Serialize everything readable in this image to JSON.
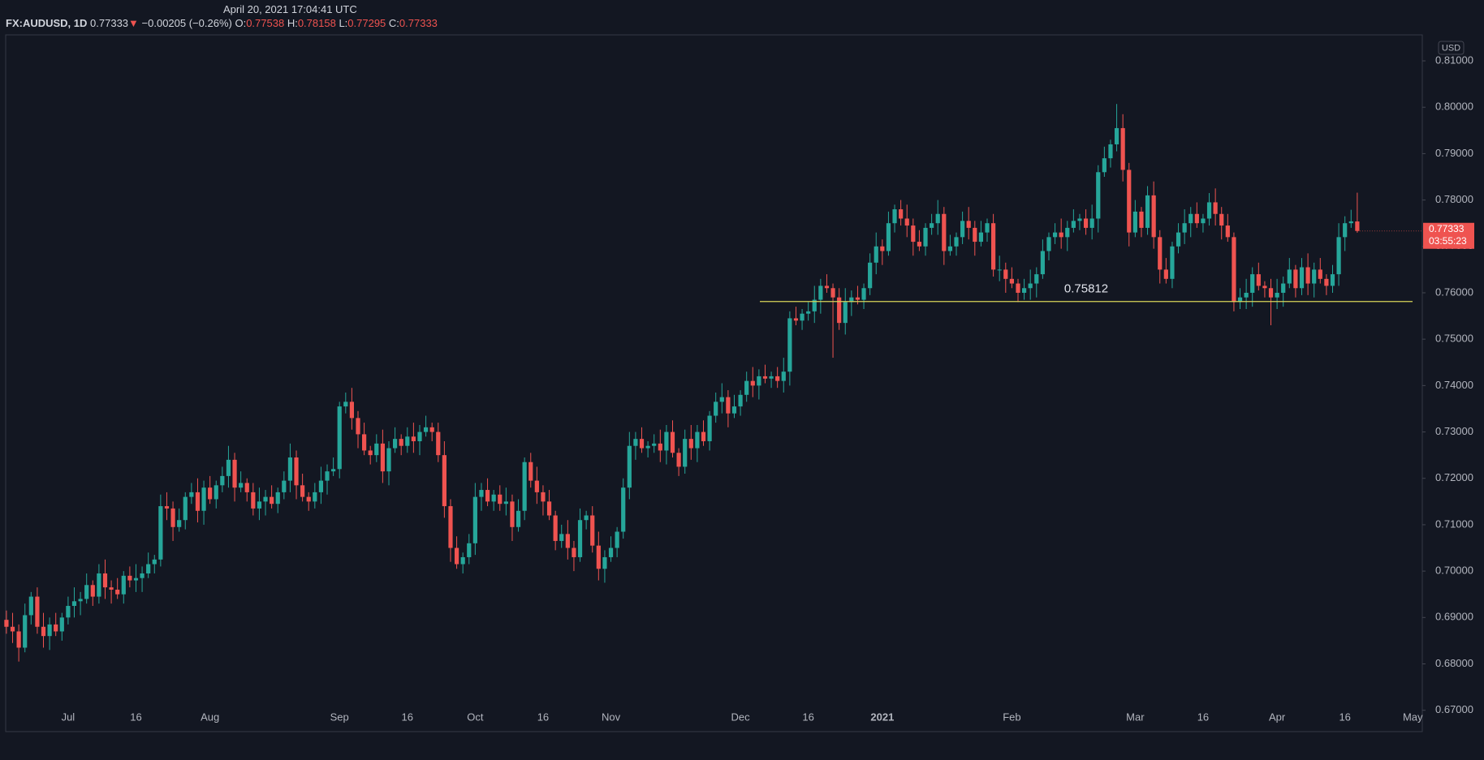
{
  "header": {
    "datetime": "April 20, 2021 17:04:41 UTC",
    "symbol": "FX:AUDUSD, 1D",
    "arrow": "▼",
    "change": "−0.00205 (−0.26%)",
    "o_label": "O:",
    "h_label": "H:",
    "l_label": "L:",
    "c_label": "C:"
  },
  "chart_data": {
    "type": "candlestick",
    "currency": "USD",
    "up_color": "#26a69a",
    "down_color": "#ef5350",
    "grid": false,
    "last_price_timer": "03:55:23",
    "hline": 0.75812,
    "hline_color": "#d8d45a",
    "ylim": [
      0.6654,
      0.8156
    ],
    "yticks": [
      {
        "value": 0.67,
        "label": "0.67000"
      },
      {
        "value": 0.68,
        "label": "0.68000"
      },
      {
        "value": 0.69,
        "label": "0.69000"
      },
      {
        "value": 0.7,
        "label": "0.70000"
      },
      {
        "value": 0.71,
        "label": "0.71000"
      },
      {
        "value": 0.72,
        "label": "0.72000"
      },
      {
        "value": 0.73,
        "label": "0.73000"
      },
      {
        "value": 0.74,
        "label": "0.74000"
      },
      {
        "value": 0.75,
        "label": "0.75000"
      },
      {
        "value": 0.76,
        "label": "0.76000"
      },
      {
        "value": 0.77,
        "label": "0.77000"
      },
      {
        "value": 0.78,
        "label": "0.78000"
      },
      {
        "value": 0.79,
        "label": "0.79000"
      },
      {
        "value": 0.8,
        "label": "0.80000"
      },
      {
        "value": 0.81,
        "label": "0.81000"
      }
    ],
    "categories": [
      null,
      null,
      null,
      null,
      null,
      null,
      null,
      null,
      null,
      null,
      "Jul",
      null,
      null,
      null,
      null,
      null,
      null,
      null,
      null,
      null,
      null,
      "16",
      null,
      null,
      null,
      null,
      null,
      null,
      null,
      null,
      null,
      null,
      null,
      "Aug",
      null,
      null,
      null,
      null,
      null,
      null,
      null,
      null,
      null,
      null,
      null,
      null,
      null,
      null,
      null,
      null,
      null,
      null,
      null,
      null,
      "Sep",
      null,
      null,
      null,
      null,
      null,
      null,
      null,
      null,
      null,
      null,
      "16",
      null,
      null,
      null,
      null,
      null,
      null,
      null,
      null,
      null,
      null,
      "Oct",
      null,
      null,
      null,
      null,
      null,
      null,
      null,
      null,
      null,
      null,
      "16",
      null,
      null,
      null,
      null,
      null,
      null,
      null,
      null,
      null,
      null,
      "Nov",
      null,
      null,
      null,
      null,
      null,
      null,
      null,
      null,
      null,
      null,
      null,
      null,
      null,
      null,
      null,
      null,
      null,
      null,
      null,
      null,
      "Dec",
      null,
      null,
      null,
      null,
      null,
      null,
      null,
      null,
      null,
      null,
      "16",
      null,
      null,
      null,
      null,
      null,
      null,
      null,
      null,
      null,
      null,
      null,
      "2021",
      null,
      null,
      null,
      null,
      null,
      null,
      null,
      null,
      null,
      null,
      null,
      null,
      null,
      null,
      null,
      null,
      null,
      null,
      null,
      null,
      "Feb",
      null,
      null,
      null,
      null,
      null,
      null,
      null,
      null,
      null,
      null,
      null,
      null,
      null,
      null,
      null,
      null,
      null,
      null,
      null,
      "Mar",
      null,
      null,
      null,
      null,
      null,
      null,
      null,
      null,
      null,
      null,
      "16",
      null,
      null,
      null,
      null,
      null,
      null,
      null,
      null,
      null,
      null,
      null,
      "Apr",
      null,
      null,
      null,
      null,
      null,
      null,
      null,
      null,
      null,
      null,
      "16",
      null,
      null,
      null,
      null,
      null,
      null,
      null,
      null,
      null,
      null,
      "May"
    ],
    "open": [
      0.6895,
      0.688,
      0.687,
      0.6835,
      0.6905,
      0.6945,
      0.688,
      0.686,
      0.6885,
      0.687,
      0.69,
      0.6925,
      0.6935,
      0.694,
      0.697,
      0.6945,
      0.6995,
      0.6965,
      0.696,
      0.695,
      0.699,
      0.698,
      0.6985,
      0.6995,
      0.7015,
      0.7025,
      0.714,
      0.7135,
      0.7095,
      0.711,
      0.716,
      0.717,
      0.713,
      0.718,
      0.7155,
      0.7185,
      0.7205,
      0.724,
      0.718,
      0.719,
      0.717,
      0.7135,
      0.715,
      0.716,
      0.7145,
      0.717,
      0.7195,
      0.7245,
      0.7185,
      0.716,
      0.715,
      0.717,
      0.7195,
      0.7215,
      0.722,
      0.7355,
      0.7365,
      0.733,
      0.7295,
      0.726,
      0.725,
      0.7275,
      0.7215,
      0.7265,
      0.7285,
      0.727,
      0.729,
      0.728,
      0.73,
      0.731,
      0.73,
      0.725,
      0.714,
      0.705,
      0.7015,
      0.703,
      0.706,
      0.716,
      0.7175,
      0.715,
      0.7165,
      0.7145,
      0.715,
      0.7095,
      0.713,
      0.7235,
      0.7195,
      0.717,
      0.715,
      0.712,
      0.7065,
      0.708,
      0.705,
      0.703,
      0.711,
      0.712,
      0.7055,
      0.7005,
      0.703,
      0.705,
      0.7085,
      0.718,
      0.727,
      0.7285,
      0.7265,
      0.727,
      0.7275,
      0.726,
      0.73,
      0.7255,
      0.7225,
      0.7285,
      0.7265,
      0.73,
      0.728,
      0.7335,
      0.7365,
      0.7375,
      0.734,
      0.7355,
      0.738,
      0.741,
      0.74,
      0.742,
      0.7415,
      0.742,
      0.741,
      0.743,
      0.7545,
      0.754,
      0.7555,
      0.756,
      0.7585,
      0.7615,
      0.761,
      0.759,
      0.7535,
      0.758,
      0.759,
      0.7585,
      0.761,
      0.7665,
      0.77,
      0.769,
      0.775,
      0.778,
      0.776,
      0.7745,
      0.771,
      0.77,
      0.774,
      0.775,
      0.777,
      0.769,
      0.77,
      0.772,
      0.7755,
      0.774,
      0.771,
      0.773,
      0.775,
      0.765,
      0.765,
      0.763,
      0.762,
      0.76,
      0.761,
      0.762,
      0.764,
      0.769,
      0.772,
      0.773,
      0.772,
      0.774,
      0.7755,
      0.776,
      0.774,
      0.776,
      0.786,
      0.789,
      0.792,
      0.7955,
      0.7865,
      0.773,
      0.7775,
      0.774,
      0.781,
      0.772,
      0.765,
      0.763,
      0.77,
      0.773,
      0.775,
      0.777,
      0.775,
      0.776,
      0.7795,
      0.777,
      0.7745,
      0.772,
      0.758,
      0.759,
      0.76,
      0.764,
      0.7615,
      0.761,
      0.759,
      0.76,
      0.762,
      0.765,
      0.761,
      0.7655,
      0.762,
      0.765,
      0.763,
      0.7615,
      0.764,
      0.772,
      0.775,
      0.77538,
      null,
      null,
      null,
      null,
      null,
      null,
      null,
      null,
      null
    ],
    "high": [
      0.6915,
      0.691,
      0.6885,
      0.693,
      0.6955,
      0.6965,
      0.691,
      0.69,
      0.691,
      0.691,
      0.6945,
      0.6965,
      0.6955,
      0.6995,
      0.698,
      0.7015,
      0.7025,
      0.698,
      0.6985,
      0.7,
      0.701,
      0.7015,
      0.701,
      0.704,
      0.7035,
      0.7165,
      0.717,
      0.715,
      0.7135,
      0.717,
      0.719,
      0.72,
      0.7195,
      0.7205,
      0.7195,
      0.7225,
      0.727,
      0.7255,
      0.7215,
      0.72,
      0.719,
      0.718,
      0.7175,
      0.7185,
      0.718,
      0.7215,
      0.7275,
      0.726,
      0.721,
      0.717,
      0.719,
      0.7225,
      0.723,
      0.7245,
      0.7365,
      0.7385,
      0.7395,
      0.7345,
      0.732,
      0.727,
      0.7295,
      0.7305,
      0.728,
      0.731,
      0.7295,
      0.731,
      0.732,
      0.7315,
      0.7335,
      0.732,
      0.732,
      0.728,
      0.7155,
      0.7075,
      0.704,
      0.708,
      0.719,
      0.719,
      0.72,
      0.7175,
      0.7185,
      0.718,
      0.7165,
      0.7155,
      0.7245,
      0.7255,
      0.7225,
      0.7185,
      0.7175,
      0.713,
      0.71,
      0.711,
      0.7065,
      0.7135,
      0.713,
      0.714,
      0.7085,
      0.7045,
      0.7075,
      0.7095,
      0.72,
      0.73,
      0.73,
      0.731,
      0.728,
      0.7295,
      0.7305,
      0.7315,
      0.7325,
      0.7265,
      0.7305,
      0.7315,
      0.7315,
      0.7325,
      0.7345,
      0.7385,
      0.7405,
      0.739,
      0.738,
      0.739,
      0.743,
      0.744,
      0.7435,
      0.7445,
      0.743,
      0.744,
      0.746,
      0.756,
      0.757,
      0.7565,
      0.758,
      0.7615,
      0.763,
      0.764,
      0.762,
      0.761,
      0.761,
      0.7605,
      0.7615,
      0.762,
      0.7685,
      0.773,
      0.7715,
      0.7775,
      0.779,
      0.78,
      0.779,
      0.776,
      0.7735,
      0.775,
      0.777,
      0.78,
      0.7785,
      0.7725,
      0.773,
      0.7775,
      0.7785,
      0.7755,
      0.7755,
      0.776,
      0.777,
      0.768,
      0.7665,
      0.7655,
      0.763,
      0.763,
      0.765,
      0.7655,
      0.7715,
      0.773,
      0.775,
      0.776,
      0.7755,
      0.778,
      0.777,
      0.778,
      0.779,
      0.7875,
      0.7915,
      0.793,
      0.8007,
      0.7985,
      0.788,
      0.78,
      0.7785,
      0.783,
      0.784,
      0.7735,
      0.7675,
      0.771,
      0.775,
      0.778,
      0.7785,
      0.7795,
      0.777,
      0.7815,
      0.7825,
      0.7785,
      0.777,
      0.773,
      0.761,
      0.763,
      0.7655,
      0.7665,
      0.7625,
      0.763,
      0.763,
      0.7635,
      0.7675,
      0.766,
      0.7675,
      0.7685,
      0.7665,
      0.7675,
      0.764,
      0.766,
      0.775,
      0.7765,
      0.7779,
      0.78158,
      null,
      null,
      null,
      null,
      null,
      null,
      null,
      null,
      null
    ],
    "low": [
      0.6865,
      0.6845,
      0.6805,
      0.6825,
      0.6885,
      0.6865,
      0.6835,
      0.683,
      0.686,
      0.685,
      0.6885,
      0.69,
      0.6905,
      0.693,
      0.6925,
      0.693,
      0.694,
      0.693,
      0.694,
      0.693,
      0.6965,
      0.6955,
      0.6955,
      0.6985,
      0.6995,
      0.701,
      0.711,
      0.7065,
      0.7085,
      0.709,
      0.7145,
      0.7105,
      0.71,
      0.7145,
      0.7135,
      0.717,
      0.718,
      0.715,
      0.717,
      0.715,
      0.712,
      0.711,
      0.712,
      0.7135,
      0.7125,
      0.7155,
      0.717,
      0.7155,
      0.715,
      0.713,
      0.7135,
      0.7145,
      0.7165,
      0.7205,
      0.72,
      0.734,
      0.7305,
      0.7265,
      0.725,
      0.723,
      0.7235,
      0.719,
      0.7185,
      0.7255,
      0.725,
      0.7255,
      0.7255,
      0.725,
      0.729,
      0.728,
      0.7235,
      0.7115,
      0.702,
      0.7005,
      0.6995,
      0.7015,
      0.7035,
      0.713,
      0.714,
      0.713,
      0.713,
      0.712,
      0.7065,
      0.7085,
      0.711,
      0.718,
      0.7145,
      0.712,
      0.711,
      0.7045,
      0.705,
      0.7025,
      0.7,
      0.702,
      0.709,
      0.704,
      0.698,
      0.6975,
      0.702,
      0.703,
      0.707,
      0.7155,
      0.724,
      0.7255,
      0.7245,
      0.7255,
      0.7235,
      0.723,
      0.7245,
      0.7205,
      0.721,
      0.724,
      0.7235,
      0.727,
      0.726,
      0.732,
      0.734,
      0.731,
      0.733,
      0.7335,
      0.7365,
      0.7375,
      0.737,
      0.7405,
      0.7395,
      0.7395,
      0.7385,
      0.74,
      0.753,
      0.752,
      0.754,
      0.7535,
      0.7555,
      0.76,
      0.746,
      0.752,
      0.751,
      0.755,
      0.7575,
      0.7565,
      0.7595,
      0.764,
      0.766,
      0.768,
      0.773,
      0.7745,
      0.772,
      0.768,
      0.769,
      0.768,
      0.7725,
      0.7725,
      0.766,
      0.768,
      0.768,
      0.7705,
      0.7715,
      0.768,
      0.77,
      0.771,
      0.7635,
      0.7625,
      0.76,
      0.761,
      0.758,
      0.7585,
      0.7585,
      0.759,
      0.763,
      0.767,
      0.7705,
      0.7695,
      0.769,
      0.773,
      0.7735,
      0.7725,
      0.7715,
      0.773,
      0.785,
      0.787,
      0.7905,
      0.784,
      0.77,
      0.772,
      0.772,
      0.7725,
      0.7695,
      0.762,
      0.762,
      0.761,
      0.7685,
      0.7705,
      0.772,
      0.774,
      0.773,
      0.7745,
      0.7745,
      0.7715,
      0.771,
      0.756,
      0.7565,
      0.7565,
      0.757,
      0.7605,
      0.759,
      0.753,
      0.7565,
      0.757,
      0.761,
      0.759,
      0.7595,
      0.7595,
      0.759,
      0.762,
      0.7595,
      0.76,
      0.7615,
      0.769,
      0.774,
      0.77295,
      null,
      null,
      null,
      null,
      null,
      null,
      null,
      null,
      null
    ],
    "close": [
      0.688,
      0.687,
      0.6835,
      0.6905,
      0.6945,
      0.688,
      0.686,
      0.6885,
      0.687,
      0.69,
      0.6925,
      0.6935,
      0.694,
      0.697,
      0.6945,
      0.6995,
      0.6965,
      0.696,
      0.695,
      0.699,
      0.698,
      0.6985,
      0.6995,
      0.7015,
      0.7025,
      0.714,
      0.7135,
      0.7095,
      0.711,
      0.716,
      0.717,
      0.713,
      0.718,
      0.7155,
      0.7185,
      0.7205,
      0.724,
      0.718,
      0.719,
      0.717,
      0.7135,
      0.715,
      0.716,
      0.7145,
      0.717,
      0.7195,
      0.7245,
      0.7185,
      0.716,
      0.715,
      0.717,
      0.7195,
      0.7215,
      0.722,
      0.7355,
      0.7365,
      0.733,
      0.7295,
      0.726,
      0.725,
      0.7275,
      0.7215,
      0.7265,
      0.7285,
      0.727,
      0.729,
      0.728,
      0.73,
      0.731,
      0.73,
      0.725,
      0.714,
      0.705,
      0.7015,
      0.703,
      0.706,
      0.716,
      0.7175,
      0.715,
      0.7165,
      0.7145,
      0.715,
      0.7095,
      0.713,
      0.7235,
      0.7195,
      0.717,
      0.715,
      0.712,
      0.7065,
      0.708,
      0.705,
      0.703,
      0.711,
      0.712,
      0.7055,
      0.7005,
      0.703,
      0.705,
      0.7085,
      0.718,
      0.727,
      0.7285,
      0.7265,
      0.727,
      0.7275,
      0.726,
      0.73,
      0.7255,
      0.7225,
      0.7285,
      0.7265,
      0.73,
      0.728,
      0.7335,
      0.7365,
      0.7375,
      0.734,
      0.7355,
      0.738,
      0.741,
      0.74,
      0.742,
      0.7415,
      0.742,
      0.741,
      0.743,
      0.7545,
      0.754,
      0.7555,
      0.756,
      0.7585,
      0.7615,
      0.761,
      0.759,
      0.7535,
      0.758,
      0.759,
      0.7585,
      0.761,
      0.7665,
      0.77,
      0.769,
      0.775,
      0.778,
      0.776,
      0.7745,
      0.771,
      0.77,
      0.774,
      0.775,
      0.777,
      0.769,
      0.77,
      0.772,
      0.7755,
      0.774,
      0.771,
      0.773,
      0.775,
      0.765,
      0.765,
      0.763,
      0.762,
      0.76,
      0.761,
      0.762,
      0.764,
      0.769,
      0.772,
      0.773,
      0.772,
      0.774,
      0.7755,
      0.776,
      0.774,
      0.776,
      0.786,
      0.789,
      0.792,
      0.7955,
      0.7865,
      0.773,
      0.7775,
      0.774,
      0.781,
      0.772,
      0.765,
      0.763,
      0.77,
      0.773,
      0.775,
      0.777,
      0.775,
      0.776,
      0.7795,
      0.777,
      0.7745,
      0.772,
      0.758,
      0.759,
      0.76,
      0.764,
      0.7615,
      0.761,
      0.759,
      0.76,
      0.762,
      0.765,
      0.761,
      0.7655,
      0.762,
      0.765,
      0.763,
      0.7615,
      0.764,
      0.772,
      0.775,
      0.7754,
      0.77333,
      null,
      null,
      null,
      null,
      null,
      null,
      null,
      null,
      null
    ]
  }
}
